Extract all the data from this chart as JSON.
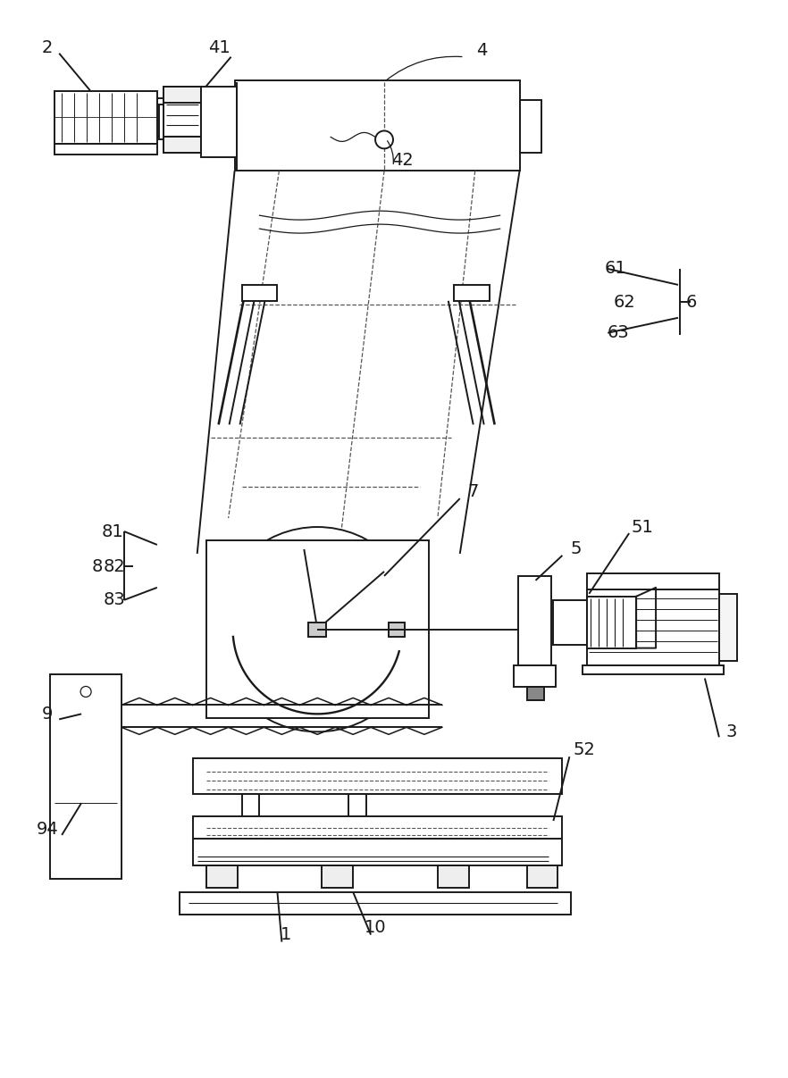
{
  "bg_color": "#ffffff",
  "line_color": "#1a1a1a",
  "lw": 1.4,
  "fig_w": 8.82,
  "fig_h": 12.07,
  "dpi": 100
}
